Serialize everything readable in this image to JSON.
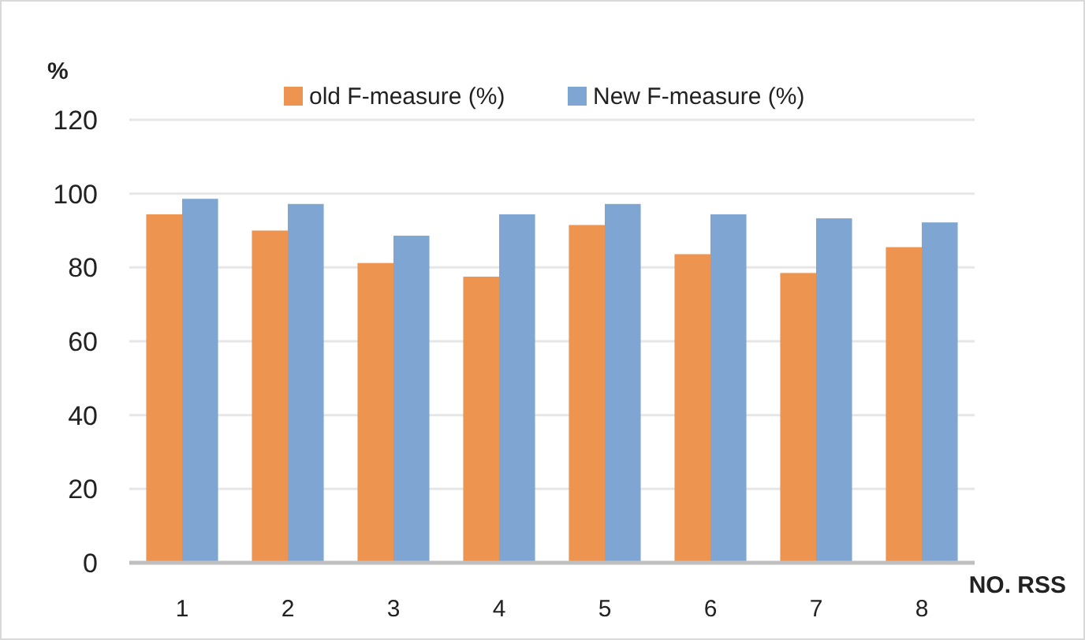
{
  "chart_data": {
    "type": "bar",
    "xlabel": "NO. RSS",
    "ylabel": "%",
    "categories": [
      "1",
      "2",
      "3",
      "4",
      "5",
      "6",
      "7",
      "8"
    ],
    "series": [
      {
        "name": "old F-measure (%)",
        "color": "#ed9550",
        "values": [
          94.4,
          90,
          81.2,
          77.5,
          91.5,
          83.6,
          78.5,
          85.5
        ]
      },
      {
        "name": "New F-measure (%)",
        "color": "#7fa6d2",
        "values": [
          98.6,
          97.2,
          88.6,
          94.4,
          97.2,
          94.4,
          93.3,
          92.2
        ]
      }
    ],
    "ylim": [
      0,
      120
    ],
    "yticks": [
      0,
      20,
      40,
      60,
      80,
      100,
      120
    ],
    "grid": "y",
    "legend": "top"
  }
}
